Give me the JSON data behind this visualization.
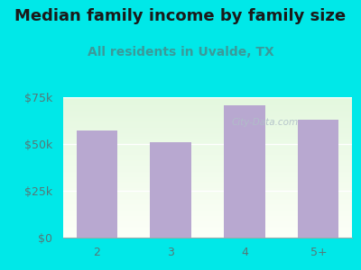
{
  "categories": [
    "2",
    "3",
    "4",
    "5+"
  ],
  "values": [
    57000,
    51000,
    70500,
    63000
  ],
  "bar_color": "#b8a8d0",
  "title": "Median family income by family size",
  "subtitle": "All residents in Uvalde, TX",
  "title_color": "#1a1a1a",
  "subtitle_color": "#3a9a9a",
  "background_color": "#00e8e8",
  "ylim": [
    0,
    75000
  ],
  "yticks": [
    0,
    25000,
    50000,
    75000
  ],
  "ytick_labels": [
    "$0",
    "$25k",
    "$50k",
    "$75k"
  ],
  "watermark": "City-Data.com",
  "watermark_color": "#b0bfc8",
  "title_fontsize": 13,
  "subtitle_fontsize": 10,
  "tick_fontsize": 9,
  "bar_width": 0.55,
  "plot_grad_topleft": [
    0.85,
    0.95,
    0.85
  ],
  "plot_grad_bottomright": [
    0.98,
    1.0,
    0.98
  ]
}
